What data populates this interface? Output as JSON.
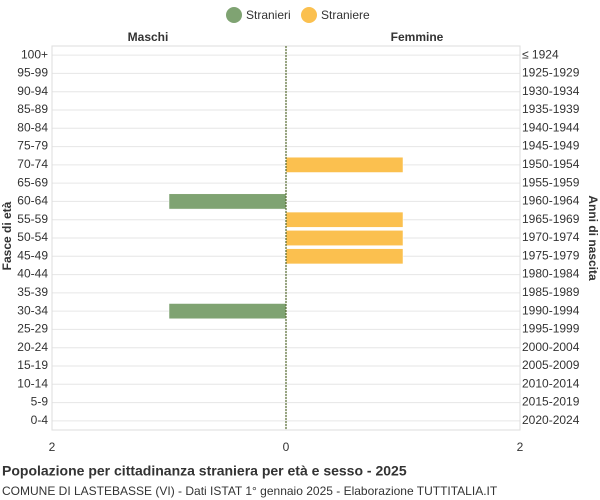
{
  "chart_data": {
    "type": "pyramid",
    "title": "Popolazione per cittadinanza straniera per età e sesso - 2025",
    "subtitle": "COMUNE DI LASTEBASSE (VI) - Dati ISTAT 1° gennaio 2025 - Elaborazione TUTTITALIA.IT",
    "left_label": "Maschi",
    "right_label": "Femmine",
    "y_axis_label": "Fasce di età",
    "y2_axis_label": "Anni di nascita",
    "categories": [
      "100+",
      "95-99",
      "90-94",
      "85-89",
      "80-84",
      "75-79",
      "70-74",
      "65-69",
      "60-64",
      "55-59",
      "50-54",
      "45-49",
      "40-44",
      "35-39",
      "30-34",
      "25-29",
      "20-24",
      "15-19",
      "10-14",
      "5-9",
      "0-4"
    ],
    "birth_years": [
      "≤ 1924",
      "1925-1929",
      "1930-1934",
      "1935-1939",
      "1940-1944",
      "1945-1949",
      "1950-1954",
      "1955-1959",
      "1960-1964",
      "1965-1969",
      "1970-1974",
      "1975-1979",
      "1980-1984",
      "1985-1989",
      "1990-1994",
      "1995-1999",
      "2000-2004",
      "2005-2009",
      "2010-2014",
      "2015-2019",
      "2020-2024"
    ],
    "series": [
      {
        "name": "Stranieri",
        "color": "#7fa372",
        "side": "left",
        "values": [
          0,
          0,
          0,
          0,
          0,
          0,
          0,
          0,
          1,
          0,
          0,
          0,
          0,
          0,
          1,
          0,
          0,
          0,
          0,
          0,
          0
        ]
      },
      {
        "name": "Straniere",
        "color": "#fbc04f",
        "side": "right",
        "values": [
          0,
          0,
          0,
          0,
          0,
          0,
          1,
          0,
          0,
          1,
          1,
          1,
          0,
          0,
          0,
          0,
          0,
          0,
          0,
          0,
          0
        ]
      }
    ],
    "xlim": [
      -2,
      2
    ],
    "xticks": [
      {
        "value": -2,
        "label": "2"
      },
      0,
      2
    ],
    "grid": true
  }
}
